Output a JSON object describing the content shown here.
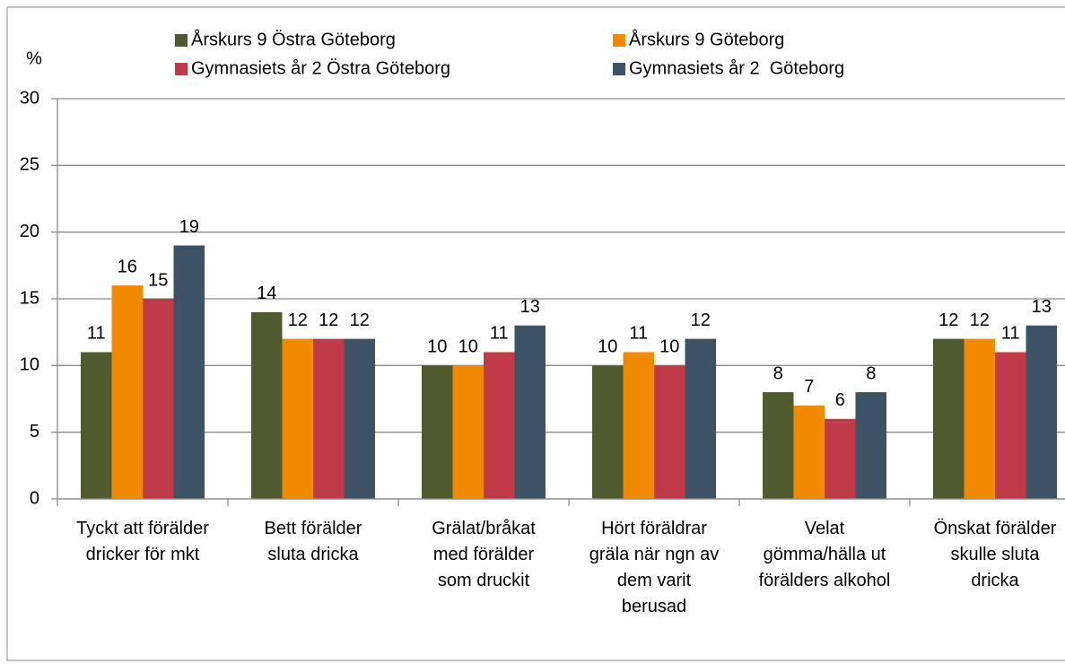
{
  "chart_data": {
    "type": "bar",
    "y_label": "%",
    "categories": [
      "Tyckt att förälder\ndricker för mkt",
      "Bett förälder\nsluta dricka",
      "Grälat/bråkat\nmed förälder\nsom druckit",
      "Hört föräldrar\ngräla när ngn av\ndem varit\nberusad",
      "Velat\ngömma/hälla ut\nförälders alkohol",
      "Önskat förälder\nskulle sluta\ndricka"
    ],
    "series": [
      {
        "name": "Årskurs 9 Östra Göteborg",
        "color": "#4f5b2e",
        "values": [
          11,
          14,
          10,
          10,
          8,
          12
        ]
      },
      {
        "name": "Årskurs 9 Göteborg",
        "color": "#f28a00",
        "values": [
          16,
          12,
          10,
          11,
          7,
          12
        ]
      },
      {
        "name": "Gymnasiets år 2 Östra Göteborg",
        "color": "#c03a4a",
        "values": [
          15,
          12,
          11,
          10,
          6,
          11
        ]
      },
      {
        "name": "Gymnasiets år 2  Göteborg",
        "color": "#3e5265",
        "values": [
          19,
          12,
          13,
          12,
          8,
          13
        ]
      }
    ],
    "ylim": [
      0,
      30
    ],
    "yticks": [
      0,
      5,
      10,
      15,
      20,
      25,
      30
    ],
    "grid": true
  }
}
